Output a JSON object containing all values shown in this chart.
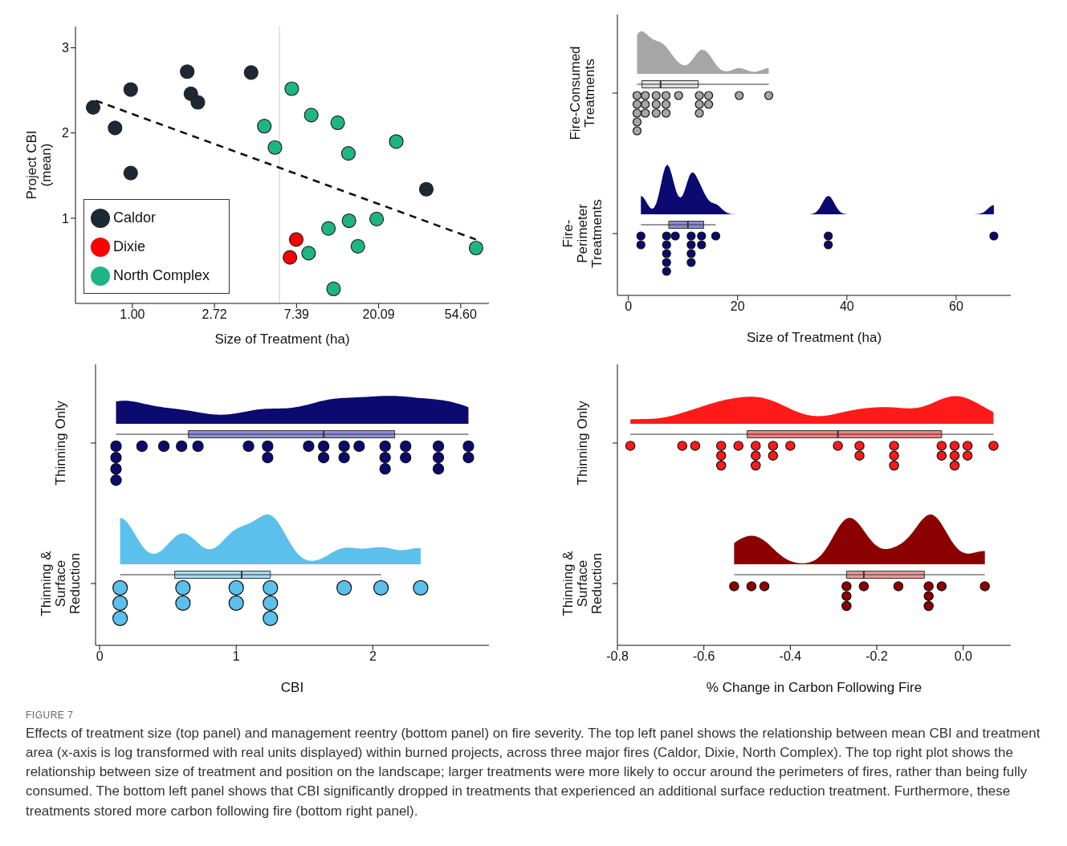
{
  "chart_data": [
    {
      "type": "scatter",
      "xlabel": "Size of Treatment (ha)",
      "ylabel": "Project CBI (mean)",
      "log": "x",
      "xlim": [
        0.5,
        77
      ],
      "xticks": [
        {
          "value": 1,
          "label": "1.00"
        },
        {
          "value": 2.718,
          "label": "2.72"
        },
        {
          "value": 7.389,
          "label": "7.39"
        },
        {
          "value": 20.09,
          "label": "20.09"
        },
        {
          "value": 54.6,
          "label": "54.60"
        }
      ],
      "ylim": [
        0,
        3.25
      ],
      "yticks": [
        1,
        2,
        3
      ],
      "legend": "bottom left",
      "marker": "circle",
      "ref_lines": [
        {
          "axis": "x",
          "value": 6,
          "color": "#c8c8c8"
        }
      ],
      "series": [
        {
          "name": "Caldor",
          "color": "#1c2833",
          "x": [
            0.62,
            0.81,
            0.98,
            0.98,
            1.95,
            2.04,
            2.22,
            4.25,
            35.9
          ],
          "values": [
            2.3,
            2.06,
            2.51,
            1.53,
            2.72,
            2.46,
            2.36,
            2.71,
            1.34
          ]
        },
        {
          "name": "Dixie",
          "color": "#ff0000",
          "x": [
            7.36,
            6.82
          ],
          "values": [
            0.75,
            0.54
          ]
        },
        {
          "name": "North Complex",
          "color": "#1fb582",
          "x": [
            6.97,
            4.99,
            5.68,
            8.84,
            12.2,
            13.9,
            24.9,
            10.9,
            14.0,
            19.6,
            15.6,
            8.56,
            11.6,
            65.8
          ],
          "values": [
            2.52,
            2.08,
            1.83,
            2.21,
            2.12,
            1.76,
            1.9,
            0.88,
            0.97,
            0.99,
            0.67,
            0.59,
            0.17,
            0.65
          ]
        },
        {
          "type": "line",
          "color": "#111111",
          "line_style": "dashed",
          "marker": "none",
          "x": [
            0.64,
            65.7
          ],
          "values": [
            2.38,
            0.75
          ]
        }
      ]
    },
    {
      "type": "box",
      "orientation": "horizontal",
      "categories": [
        "Fire-Consumed Treatments",
        "Fire-Perimeter Treatments"
      ],
      "xlabel": "Size of Treatment (ha)",
      "xlim": [
        -2,
        70
      ],
      "xticks": [
        0,
        20,
        40,
        60
      ],
      "marker": "circle",
      "colors": [
        "#e0e0e0",
        "#8c8cd9"
      ],
      "boxes": [
        {
          "low": 1.6,
          "q1": 2.5,
          "median": 5.9,
          "q3": 12.8,
          "high": 25.7
        },
        {
          "low": 2.3,
          "q1": 7.4,
          "median": 10.9,
          "q3": 13.8,
          "high": 16.0
        }
      ],
      "series": [
        {
          "type": "scatter",
          "color": "#a6a6a6",
          "x": [
            "Fire-Consumed Treatments",
            "Fire-Consumed Treatments",
            "Fire-Consumed Treatments",
            "Fire-Consumed Treatments",
            "Fire-Consumed Treatments",
            "Fire-Consumed Treatments",
            "Fire-Consumed Treatments",
            "Fire-Consumed Treatments",
            "Fire-Consumed Treatments",
            "Fire-Consumed Treatments",
            "Fire-Consumed Treatments",
            "Fire-Consumed Treatments",
            "Fire-Consumed Treatments",
            "Fire-Consumed Treatments",
            "Fire-Consumed Treatments",
            "Fire-Consumed Treatments",
            "Fire-Consumed Treatments",
            "Fire-Consumed Treatments",
            "Fire-Consumed Treatments",
            "Fire-Consumed Treatments",
            "Fire-Consumed Treatments",
            "Fire-Consumed Treatments"
          ],
          "values": [
            1.6,
            1.6,
            1.6,
            1.6,
            1.6,
            3.1,
            3.1,
            3.1,
            5.1,
            5.1,
            5.1,
            6.9,
            6.9,
            6.9,
            9.2,
            13.0,
            13.0,
            13.0,
            14.7,
            14.7,
            20.3,
            25.7
          ]
        },
        {
          "type": "scatter",
          "color": "#0a0a70",
          "x": [
            "Fire-Perimeter Treatments",
            "Fire-Perimeter Treatments",
            "Fire-Perimeter Treatments",
            "Fire-Perimeter Treatments",
            "Fire-Perimeter Treatments",
            "Fire-Perimeter Treatments",
            "Fire-Perimeter Treatments",
            "Fire-Perimeter Treatments",
            "Fire-Perimeter Treatments",
            "Fire-Perimeter Treatments",
            "Fire-Perimeter Treatments",
            "Fire-Perimeter Treatments",
            "Fire-Perimeter Treatments",
            "Fire-Perimeter Treatments",
            "Fire-Perimeter Treatments",
            "Fire-Perimeter Treatments",
            "Fire-Perimeter Treatments",
            "Fire-Perimeter Treatments"
          ],
          "values": [
            2.3,
            2.3,
            7.0,
            7.0,
            7.0,
            7.0,
            7.0,
            8.6,
            11.5,
            11.5,
            11.5,
            11.5,
            13.4,
            13.4,
            16.0,
            36.6,
            36.6,
            66.9
          ]
        }
      ]
    },
    {
      "type": "box",
      "orientation": "horizontal",
      "categories": [
        "Thinning Only",
        "Thinning & Surface Reduction"
      ],
      "xlabel": "CBI",
      "xlim": [
        -0.03,
        2.85
      ],
      "xticks": [
        0,
        1,
        2
      ],
      "marker": "circle",
      "colors": [
        "#8f8fd6",
        "#a9dcf2"
      ],
      "boxes": [
        {
          "low": 0.12,
          "q1": 0.65,
          "median": 1.64,
          "q3": 2.16,
          "high": 2.7
        },
        {
          "low": 0.15,
          "q1": 0.55,
          "median": 1.04,
          "q3": 1.25,
          "high": 2.06
        }
      ],
      "series": [
        {
          "type": "scatter",
          "color": "#0a0a70",
          "x": [
            "Thinning Only",
            "Thinning Only",
            "Thinning Only",
            "Thinning Only",
            "Thinning Only",
            "Thinning Only",
            "Thinning Only",
            "Thinning Only",
            "Thinning Only",
            "Thinning Only",
            "Thinning Only",
            "Thinning Only",
            "Thinning Only",
            "Thinning Only",
            "Thinning Only",
            "Thinning Only",
            "Thinning Only",
            "Thinning Only",
            "Thinning Only",
            "Thinning Only",
            "Thinning Only",
            "Thinning Only",
            "Thinning Only",
            "Thinning Only",
            "Thinning Only",
            "Thinning Only",
            "Thinning Only"
          ],
          "values": [
            0.12,
            0.12,
            0.12,
            0.12,
            0.31,
            0.47,
            0.6,
            0.72,
            1.09,
            1.23,
            1.23,
            1.53,
            1.64,
            1.64,
            1.79,
            1.79,
            1.9,
            2.09,
            2.09,
            2.09,
            2.24,
            2.24,
            2.48,
            2.48,
            2.48,
            2.7,
            2.7
          ]
        },
        {
          "type": "scatter",
          "color": "#5bc0eb",
          "x": [
            "Thinning & Surface Reduction",
            "Thinning & Surface Reduction",
            "Thinning & Surface Reduction",
            "Thinning & Surface Reduction",
            "Thinning & Surface Reduction",
            "Thinning & Surface Reduction",
            "Thinning & Surface Reduction",
            "Thinning & Surface Reduction",
            "Thinning & Surface Reduction",
            "Thinning & Surface Reduction",
            "Thinning & Surface Reduction",
            "Thinning & Surface Reduction",
            "Thinning & Surface Reduction"
          ],
          "values": [
            0.15,
            0.15,
            0.15,
            0.61,
            0.61,
            1.0,
            1.0,
            1.25,
            1.25,
            1.25,
            1.79,
            2.06,
            2.35
          ]
        }
      ]
    },
    {
      "type": "box",
      "orientation": "horizontal",
      "categories": [
        "Thinning Only",
        "Thinning & Surface Reduction"
      ],
      "xlabel": "% Change in Carbon Following Fire",
      "xlim": [
        -0.8,
        0.11
      ],
      "xticks": [
        -0.8,
        -0.6,
        -0.4,
        -0.2,
        {
          "value": 0,
          "label": "0.0"
        }
      ],
      "marker": "circle",
      "colors": [
        "#f08080",
        "#e89a9a"
      ],
      "boxes": [
        {
          "low": -0.77,
          "q1": -0.5,
          "median": -0.29,
          "q3": -0.05,
          "high": 0.07
        },
        {
          "low": -0.53,
          "q1": -0.27,
          "median": -0.23,
          "q3": -0.09,
          "high": 0.05
        }
      ],
      "series": [
        {
          "type": "scatter",
          "color": "#ff1a1a",
          "x": [
            "Thinning Only",
            "Thinning Only",
            "Thinning Only",
            "Thinning Only",
            "Thinning Only",
            "Thinning Only",
            "Thinning Only",
            "Thinning Only",
            "Thinning Only",
            "Thinning Only",
            "Thinning Only",
            "Thinning Only",
            "Thinning Only",
            "Thinning Only",
            "Thinning Only",
            "Thinning Only",
            "Thinning Only",
            "Thinning Only",
            "Thinning Only",
            "Thinning Only",
            "Thinning Only",
            "Thinning Only",
            "Thinning Only",
            "Thinning Only",
            "Thinning Only",
            "Thinning Only",
            "Thinning Only"
          ],
          "values": [
            -0.77,
            -0.65,
            -0.62,
            -0.56,
            -0.56,
            -0.56,
            -0.52,
            -0.48,
            -0.48,
            -0.48,
            -0.44,
            -0.44,
            -0.4,
            -0.29,
            -0.24,
            -0.24,
            -0.16,
            -0.16,
            -0.16,
            -0.05,
            -0.05,
            -0.02,
            -0.02,
            -0.02,
            0.01,
            0.01,
            0.07
          ]
        },
        {
          "type": "scatter",
          "color": "#8b0000",
          "x": [
            "Thinning & Surface Reduction",
            "Thinning & Surface Reduction",
            "Thinning & Surface Reduction",
            "Thinning & Surface Reduction",
            "Thinning & Surface Reduction",
            "Thinning & Surface Reduction",
            "Thinning & Surface Reduction",
            "Thinning & Surface Reduction",
            "Thinning & Surface Reduction",
            "Thinning & Surface Reduction",
            "Thinning & Surface Reduction",
            "Thinning & Surface Reduction",
            "Thinning & Surface Reduction"
          ],
          "values": [
            -0.53,
            -0.49,
            -0.46,
            -0.27,
            -0.27,
            -0.27,
            -0.23,
            -0.15,
            -0.08,
            -0.08,
            -0.08,
            -0.05,
            0.05
          ]
        }
      ],
      "annotations": [
        "FIGURE 7",
        "Effects of treatment size (top panel) and management reentry (bottom panel) on fire severity. The top left panel shows the relationship between mean CBI and treatment area (x-axis is log transformed with real units displayed) within burned projects, across three major fires (Caldor, Dixie, North Complex). The top right plot shows the relationship between size of treatment and position on the landscape; larger treatments were more likely to occur around the perimeters of fires, rather than being fully consumed. The bottom left panel shows that CBI significantly dropped in treatments that experienced an additional surface reduction treatment. Furthermore, these treatments stored more carbon following fire (bottom right panel)."
      ]
    }
  ]
}
